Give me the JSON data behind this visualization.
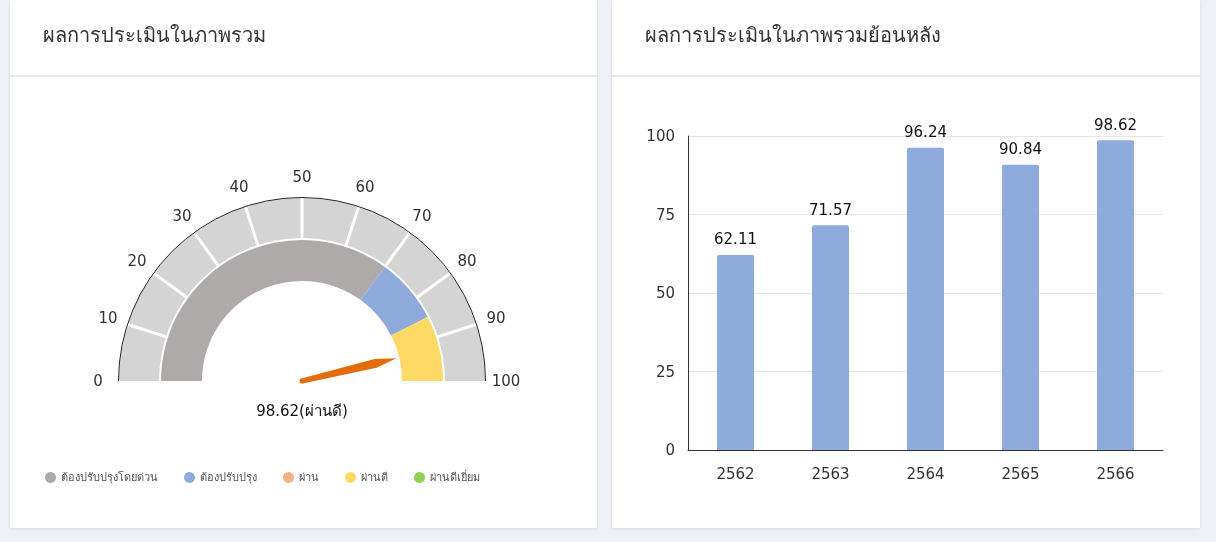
{
  "chart_data": [
    {
      "type": "donut",
      "title": "ผลการประเมินในภาพรวม",
      "categories": [
        "ต้องปรับปรุงโดยด่วน",
        "ต้องปรับปรุง",
        "ผ่าน",
        "ผ่านดี",
        "ผ่านดีเยี่ยม"
      ],
      "values": [
        70,
        15,
        0,
        15,
        0
      ],
      "colors": [
        "#aeaaaa",
        "#8faadc",
        "#f4b183",
        "#ffd966",
        "#92d050"
      ],
      "needle": "ผ่านดี",
      "annotations": [
        "0",
        "10",
        "20",
        "30",
        "40",
        "50",
        "60",
        "70",
        "80",
        "90",
        "100",
        "98.62(ผ่านดี)"
      ],
      "legend": "bottom"
    },
    {
      "type": "bar",
      "title": "ผลการประเมินในภาพรวมย้อนหลัง",
      "categories": [
        "2562",
        "2563",
        "2564",
        "2565",
        "2566"
      ],
      "values": [
        62.11,
        71.57,
        96.24,
        90.84,
        98.62
      ],
      "color": "#8faadc",
      "ylim": [
        0,
        100
      ],
      "yticks": [
        0,
        25,
        50,
        75,
        100
      ],
      "grid": "y",
      "data_labels": true
    }
  ]
}
